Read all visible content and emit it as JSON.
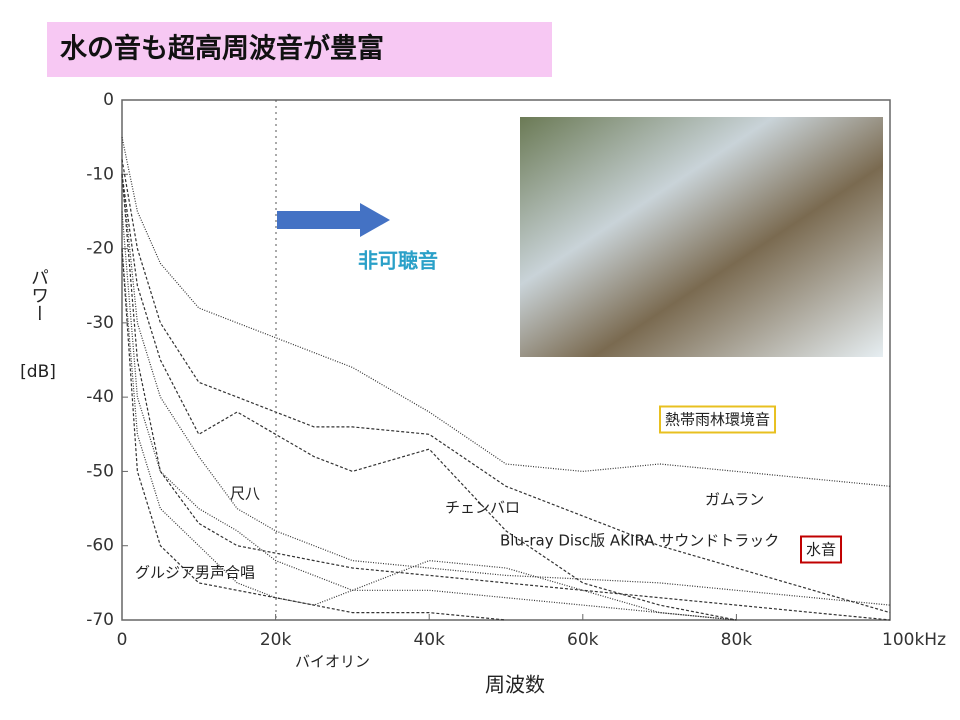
{
  "chart_data": {
    "type": "line",
    "title": "水の音も超高周波音が豊富",
    "annotation": "非可聴音",
    "xlabel": "周波数",
    "ylabel": "パワー",
    "ylabel_unit": "[dB]",
    "xlim": [
      0,
      100000
    ],
    "ylim": [
      -70,
      0
    ],
    "xticks": [
      0,
      {
        "value": 20000,
        "label": "20k"
      },
      {
        "value": 40000,
        "label": "40k"
      },
      {
        "value": 60000,
        "label": "60k"
      },
      {
        "value": 80000,
        "label": "80k"
      },
      {
        "value": 100000,
        "label": "100kHz"
      }
    ],
    "yticks": [
      0,
      -10,
      -20,
      -30,
      -40,
      -50,
      -60,
      -70
    ],
    "x": [
      0,
      2000,
      5000,
      10000,
      15000,
      20000,
      25000,
      30000,
      40000,
      50000,
      60000,
      70000,
      80000,
      90000,
      100000
    ],
    "series": [
      {
        "name": "熱帯雨林環境音",
        "color": "#333333",
        "values": [
          -5,
          -15,
          -22,
          -28,
          -30,
          -32,
          -34,
          -36,
          -42,
          -49,
          -50,
          -49,
          -50,
          -51,
          -52
        ]
      },
      {
        "name": "ガムラン",
        "color": "#333333",
        "values": [
          -8,
          -20,
          -30,
          -38,
          -40,
          -42,
          -44,
          -44,
          -45,
          -52,
          -56,
          -60,
          -63,
          -66,
          -69
        ]
      },
      {
        "name": "水音",
        "color": "#333333",
        "values": [
          -10,
          -30,
          -40,
          -48,
          -55,
          -58,
          -60,
          -62,
          -63,
          -64,
          -64.5,
          -65,
          -66,
          -67,
          -68
        ]
      },
      {
        "name": "チェンバロ",
        "color": "#333333",
        "values": [
          -10,
          -25,
          -35,
          -45,
          -42,
          -45,
          -48,
          -50,
          -47,
          -58,
          -65,
          -68,
          -70,
          null,
          null
        ]
      },
      {
        "name": "尺八",
        "color": "#333333",
        "values": [
          -15,
          -40,
          -50,
          -55,
          -58,
          -62,
          -64,
          -66,
          -66,
          -67,
          -68,
          -69,
          -70,
          null,
          null
        ]
      },
      {
        "name": "グルジア男声合唱",
        "color": "#333333",
        "values": [
          -20,
          -50,
          -60,
          -65,
          -66,
          -67,
          -68,
          -69,
          -69,
          -70,
          null,
          null,
          null,
          null,
          null
        ]
      },
      {
        "name": "バイオリン",
        "color": "#333333",
        "values": [
          -20,
          -45,
          -55,
          -60,
          -65,
          -67,
          -68,
          -66,
          -62,
          -63,
          -66,
          -69,
          -70,
          null,
          null
        ]
      },
      {
        "name": "Blu-ray Disc版 AKIRA サウンドトラック",
        "color": "#333333",
        "values": [
          -10,
          -35,
          -50,
          -57,
          -60,
          -61,
          -62,
          -63,
          -64,
          -65,
          -66,
          -67,
          -68,
          -69,
          -70
        ]
      }
    ]
  }
}
